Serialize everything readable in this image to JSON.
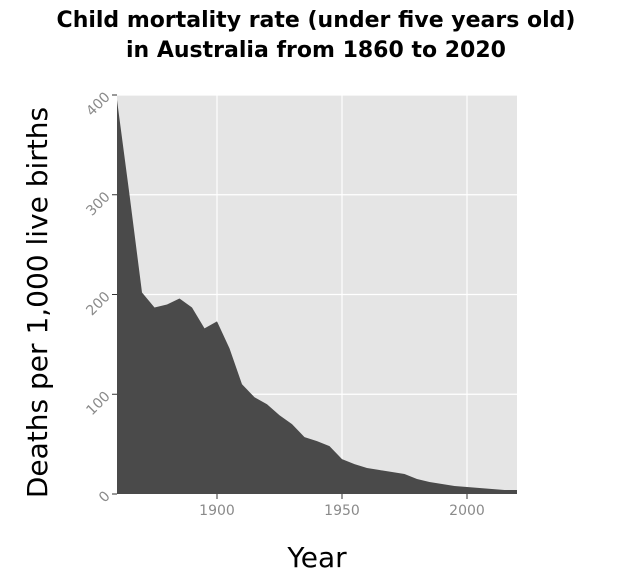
{
  "chart_data": {
    "type": "area",
    "title_lines": [
      "Child mortality rate (under five years old)",
      "in Australia from 1860 to 2020"
    ],
    "xlabel": "Year",
    "ylabel": "Deaths per 1,000 live births",
    "xlim": [
      1860,
      2020
    ],
    "ylim": [
      0,
      400
    ],
    "xticks": [
      1900,
      1950,
      2000
    ],
    "yticks": [
      0,
      100,
      200,
      300,
      400
    ],
    "grid": true,
    "colors": {
      "area": "#4a4a4a",
      "panel": "#e5e5e5",
      "grid": "#ffffff"
    },
    "x": [
      1860,
      1865,
      1870,
      1875,
      1880,
      1885,
      1890,
      1895,
      1900,
      1905,
      1910,
      1915,
      1920,
      1925,
      1930,
      1935,
      1940,
      1945,
      1950,
      1955,
      1960,
      1965,
      1970,
      1975,
      1980,
      1985,
      1990,
      1995,
      2000,
      2005,
      2010,
      2015,
      2020
    ],
    "y": [
      395,
      300,
      202,
      187,
      190,
      196,
      187,
      166,
      173,
      146,
      110,
      97,
      90,
      79,
      70,
      57,
      53,
      48,
      35,
      30,
      26,
      24,
      22,
      20,
      15,
      12,
      10,
      8,
      7,
      6,
      5,
      4,
      4
    ]
  }
}
